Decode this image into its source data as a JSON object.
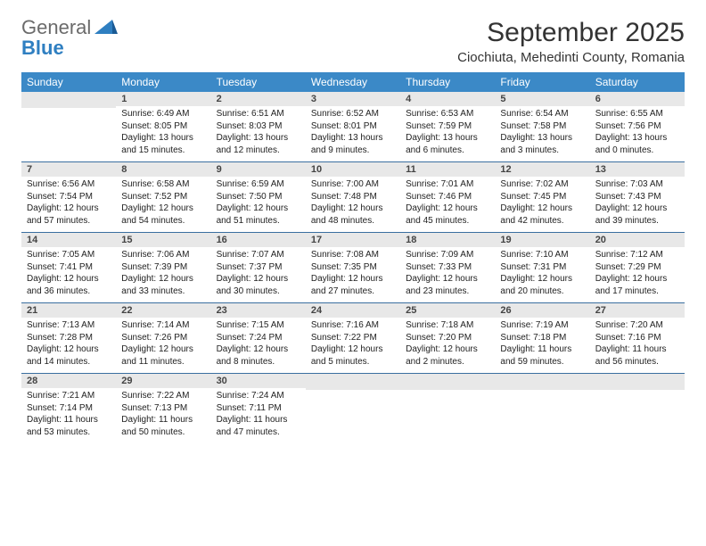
{
  "logo": {
    "text1": "General",
    "text2": "Blue"
  },
  "title": "September 2025",
  "location": "Ciochiuta, Mehedinti County, Romania",
  "colors": {
    "header_bg": "#3b89c7",
    "header_text": "#ffffff",
    "daynum_bg": "#e8e8e8",
    "border": "#3b6fa0",
    "logo_grey": "#6b6b6b",
    "logo_blue": "#2f7fc1"
  },
  "day_names": [
    "Sunday",
    "Monday",
    "Tuesday",
    "Wednesday",
    "Thursday",
    "Friday",
    "Saturday"
  ],
  "weeks": [
    [
      {
        "n": "",
        "sr": "",
        "ss": "",
        "dl": ""
      },
      {
        "n": "1",
        "sr": "Sunrise: 6:49 AM",
        "ss": "Sunset: 8:05 PM",
        "dl": "Daylight: 13 hours and 15 minutes."
      },
      {
        "n": "2",
        "sr": "Sunrise: 6:51 AM",
        "ss": "Sunset: 8:03 PM",
        "dl": "Daylight: 13 hours and 12 minutes."
      },
      {
        "n": "3",
        "sr": "Sunrise: 6:52 AM",
        "ss": "Sunset: 8:01 PM",
        "dl": "Daylight: 13 hours and 9 minutes."
      },
      {
        "n": "4",
        "sr": "Sunrise: 6:53 AM",
        "ss": "Sunset: 7:59 PM",
        "dl": "Daylight: 13 hours and 6 minutes."
      },
      {
        "n": "5",
        "sr": "Sunrise: 6:54 AM",
        "ss": "Sunset: 7:58 PM",
        "dl": "Daylight: 13 hours and 3 minutes."
      },
      {
        "n": "6",
        "sr": "Sunrise: 6:55 AM",
        "ss": "Sunset: 7:56 PM",
        "dl": "Daylight: 13 hours and 0 minutes."
      }
    ],
    [
      {
        "n": "7",
        "sr": "Sunrise: 6:56 AM",
        "ss": "Sunset: 7:54 PM",
        "dl": "Daylight: 12 hours and 57 minutes."
      },
      {
        "n": "8",
        "sr": "Sunrise: 6:58 AM",
        "ss": "Sunset: 7:52 PM",
        "dl": "Daylight: 12 hours and 54 minutes."
      },
      {
        "n": "9",
        "sr": "Sunrise: 6:59 AM",
        "ss": "Sunset: 7:50 PM",
        "dl": "Daylight: 12 hours and 51 minutes."
      },
      {
        "n": "10",
        "sr": "Sunrise: 7:00 AM",
        "ss": "Sunset: 7:48 PM",
        "dl": "Daylight: 12 hours and 48 minutes."
      },
      {
        "n": "11",
        "sr": "Sunrise: 7:01 AM",
        "ss": "Sunset: 7:46 PM",
        "dl": "Daylight: 12 hours and 45 minutes."
      },
      {
        "n": "12",
        "sr": "Sunrise: 7:02 AM",
        "ss": "Sunset: 7:45 PM",
        "dl": "Daylight: 12 hours and 42 minutes."
      },
      {
        "n": "13",
        "sr": "Sunrise: 7:03 AM",
        "ss": "Sunset: 7:43 PM",
        "dl": "Daylight: 12 hours and 39 minutes."
      }
    ],
    [
      {
        "n": "14",
        "sr": "Sunrise: 7:05 AM",
        "ss": "Sunset: 7:41 PM",
        "dl": "Daylight: 12 hours and 36 minutes."
      },
      {
        "n": "15",
        "sr": "Sunrise: 7:06 AM",
        "ss": "Sunset: 7:39 PM",
        "dl": "Daylight: 12 hours and 33 minutes."
      },
      {
        "n": "16",
        "sr": "Sunrise: 7:07 AM",
        "ss": "Sunset: 7:37 PM",
        "dl": "Daylight: 12 hours and 30 minutes."
      },
      {
        "n": "17",
        "sr": "Sunrise: 7:08 AM",
        "ss": "Sunset: 7:35 PM",
        "dl": "Daylight: 12 hours and 27 minutes."
      },
      {
        "n": "18",
        "sr": "Sunrise: 7:09 AM",
        "ss": "Sunset: 7:33 PM",
        "dl": "Daylight: 12 hours and 23 minutes."
      },
      {
        "n": "19",
        "sr": "Sunrise: 7:10 AM",
        "ss": "Sunset: 7:31 PM",
        "dl": "Daylight: 12 hours and 20 minutes."
      },
      {
        "n": "20",
        "sr": "Sunrise: 7:12 AM",
        "ss": "Sunset: 7:29 PM",
        "dl": "Daylight: 12 hours and 17 minutes."
      }
    ],
    [
      {
        "n": "21",
        "sr": "Sunrise: 7:13 AM",
        "ss": "Sunset: 7:28 PM",
        "dl": "Daylight: 12 hours and 14 minutes."
      },
      {
        "n": "22",
        "sr": "Sunrise: 7:14 AM",
        "ss": "Sunset: 7:26 PM",
        "dl": "Daylight: 12 hours and 11 minutes."
      },
      {
        "n": "23",
        "sr": "Sunrise: 7:15 AM",
        "ss": "Sunset: 7:24 PM",
        "dl": "Daylight: 12 hours and 8 minutes."
      },
      {
        "n": "24",
        "sr": "Sunrise: 7:16 AM",
        "ss": "Sunset: 7:22 PM",
        "dl": "Daylight: 12 hours and 5 minutes."
      },
      {
        "n": "25",
        "sr": "Sunrise: 7:18 AM",
        "ss": "Sunset: 7:20 PM",
        "dl": "Daylight: 12 hours and 2 minutes."
      },
      {
        "n": "26",
        "sr": "Sunrise: 7:19 AM",
        "ss": "Sunset: 7:18 PM",
        "dl": "Daylight: 11 hours and 59 minutes."
      },
      {
        "n": "27",
        "sr": "Sunrise: 7:20 AM",
        "ss": "Sunset: 7:16 PM",
        "dl": "Daylight: 11 hours and 56 minutes."
      }
    ],
    [
      {
        "n": "28",
        "sr": "Sunrise: 7:21 AM",
        "ss": "Sunset: 7:14 PM",
        "dl": "Daylight: 11 hours and 53 minutes."
      },
      {
        "n": "29",
        "sr": "Sunrise: 7:22 AM",
        "ss": "Sunset: 7:13 PM",
        "dl": "Daylight: 11 hours and 50 minutes."
      },
      {
        "n": "30",
        "sr": "Sunrise: 7:24 AM",
        "ss": "Sunset: 7:11 PM",
        "dl": "Daylight: 11 hours and 47 minutes."
      },
      {
        "n": "",
        "sr": "",
        "ss": "",
        "dl": ""
      },
      {
        "n": "",
        "sr": "",
        "ss": "",
        "dl": ""
      },
      {
        "n": "",
        "sr": "",
        "ss": "",
        "dl": ""
      },
      {
        "n": "",
        "sr": "",
        "ss": "",
        "dl": ""
      }
    ]
  ]
}
